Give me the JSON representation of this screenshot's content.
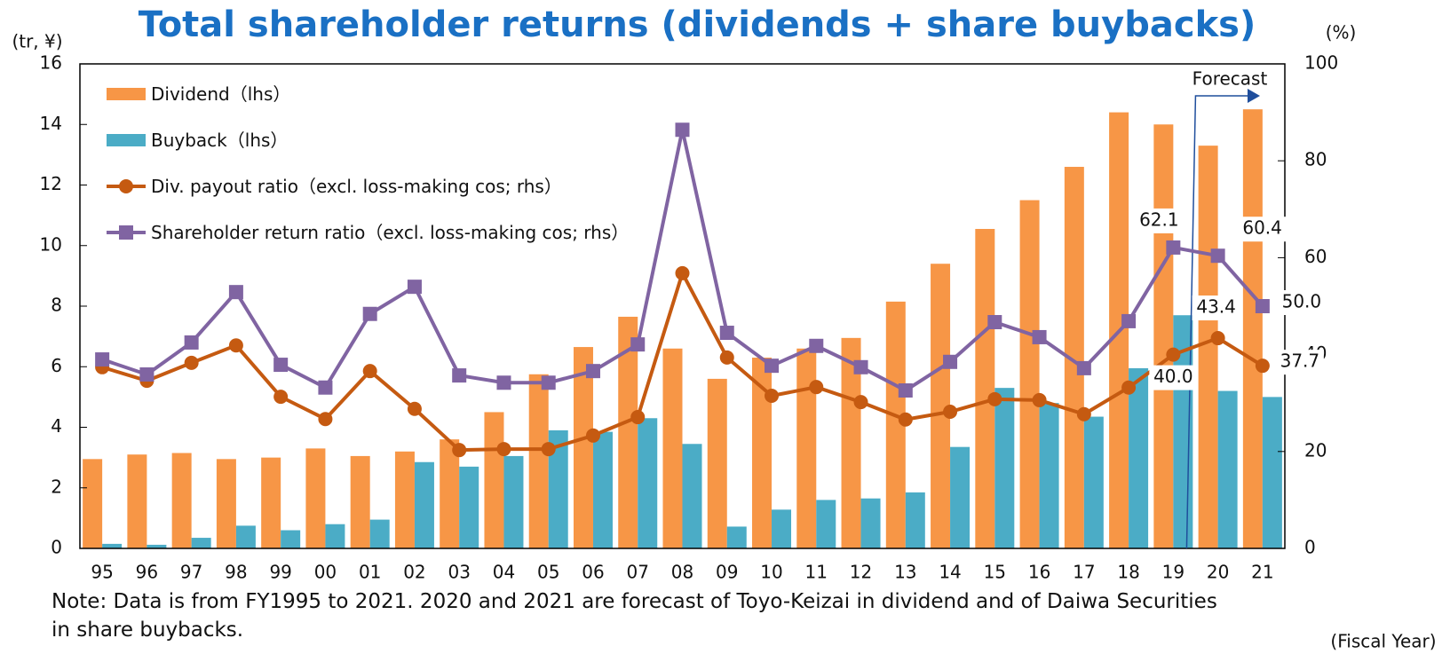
{
  "chart_data": {
    "type": "bar",
    "title": "Total shareholder returns (dividends + share buybacks)",
    "y_label": "(tr, ¥)",
    "y2_label": "(%)",
    "x_label": "(Fiscal Year)",
    "note": "Note: Data is from FY1995 to 2021. 2020 and 2021 are forecast of Toyo-Keizai in dividend and of Daiwa Securities in share buybacks.",
    "forecast_label": "Forecast",
    "categories": [
      "95",
      "96",
      "97",
      "98",
      "99",
      "00",
      "01",
      "02",
      "03",
      "04",
      "05",
      "06",
      "07",
      "08",
      "09",
      "10",
      "11",
      "12",
      "13",
      "14",
      "15",
      "16",
      "17",
      "18",
      "19",
      "20",
      "21"
    ],
    "ylim": [
      0,
      16
    ],
    "yticks": [
      0,
      2,
      4,
      6,
      8,
      10,
      12,
      14,
      16
    ],
    "y2lim": [
      0,
      100
    ],
    "y2ticks": [
      0,
      20,
      40,
      60,
      80,
      100
    ],
    "legend": "top-left",
    "series": [
      {
        "name": "Dividend（lhs）",
        "type": "bar",
        "color": "#f79646",
        "values": [
          2.95,
          3.1,
          3.15,
          2.95,
          3.0,
          3.3,
          3.05,
          3.2,
          3.6,
          4.5,
          5.75,
          6.65,
          7.65,
          6.6,
          5.6,
          6.3,
          6.6,
          6.95,
          8.15,
          9.4,
          10.55,
          11.5,
          12.6,
          14.4,
          14.0,
          13.3,
          14.5
        ]
      },
      {
        "name": "Buyback（lhs）",
        "type": "bar",
        "color": "#4bacc6",
        "values": [
          0.15,
          0.12,
          0.35,
          0.75,
          0.6,
          0.8,
          0.95,
          2.85,
          2.7,
          3.05,
          3.9,
          3.85,
          4.3,
          3.45,
          0.72,
          1.28,
          1.6,
          1.65,
          1.85,
          3.35,
          5.3,
          4.8,
          4.35,
          5.95,
          7.7,
          5.2,
          5.0
        ]
      },
      {
        "name": "Div. payout ratio（excl. loss-making cos; rhs）",
        "type": "line",
        "axis": "y2",
        "marker": "circle",
        "color": "#c55a11",
        "values": [
          37.4,
          34.6,
          38.3,
          41.9,
          31.3,
          26.7,
          36.6,
          28.8,
          20.3,
          20.5,
          20.5,
          23.3,
          27.1,
          56.8,
          39.4,
          31.5,
          33.3,
          30.2,
          26.6,
          28.2,
          30.8,
          30.6,
          27.7,
          33.2,
          40.0,
          43.4,
          37.7
        ],
        "value_labels": [
          null,
          null,
          null,
          null,
          null,
          null,
          null,
          null,
          null,
          null,
          null,
          null,
          null,
          null,
          null,
          null,
          null,
          null,
          null,
          null,
          null,
          null,
          null,
          null,
          "40.0",
          "43.4",
          "37.7"
        ]
      },
      {
        "name": "Shareholder return ratio（excl. loss-making cos; rhs）",
        "type": "line",
        "axis": "y2",
        "marker": "square",
        "color": "#8064a2",
        "values": [
          39.0,
          35.9,
          42.5,
          52.9,
          37.9,
          33.2,
          48.4,
          54.0,
          35.7,
          34.2,
          34.2,
          36.6,
          42.1,
          86.4,
          44.5,
          37.7,
          41.8,
          37.4,
          32.6,
          38.5,
          46.7,
          43.6,
          37.2,
          46.9,
          62.1,
          60.4,
          50.0
        ],
        "value_labels": [
          null,
          null,
          null,
          null,
          null,
          null,
          null,
          null,
          null,
          null,
          null,
          null,
          null,
          null,
          null,
          null,
          null,
          null,
          null,
          null,
          null,
          null,
          null,
          null,
          "62.1",
          "60.4",
          "50.0"
        ]
      }
    ]
  }
}
